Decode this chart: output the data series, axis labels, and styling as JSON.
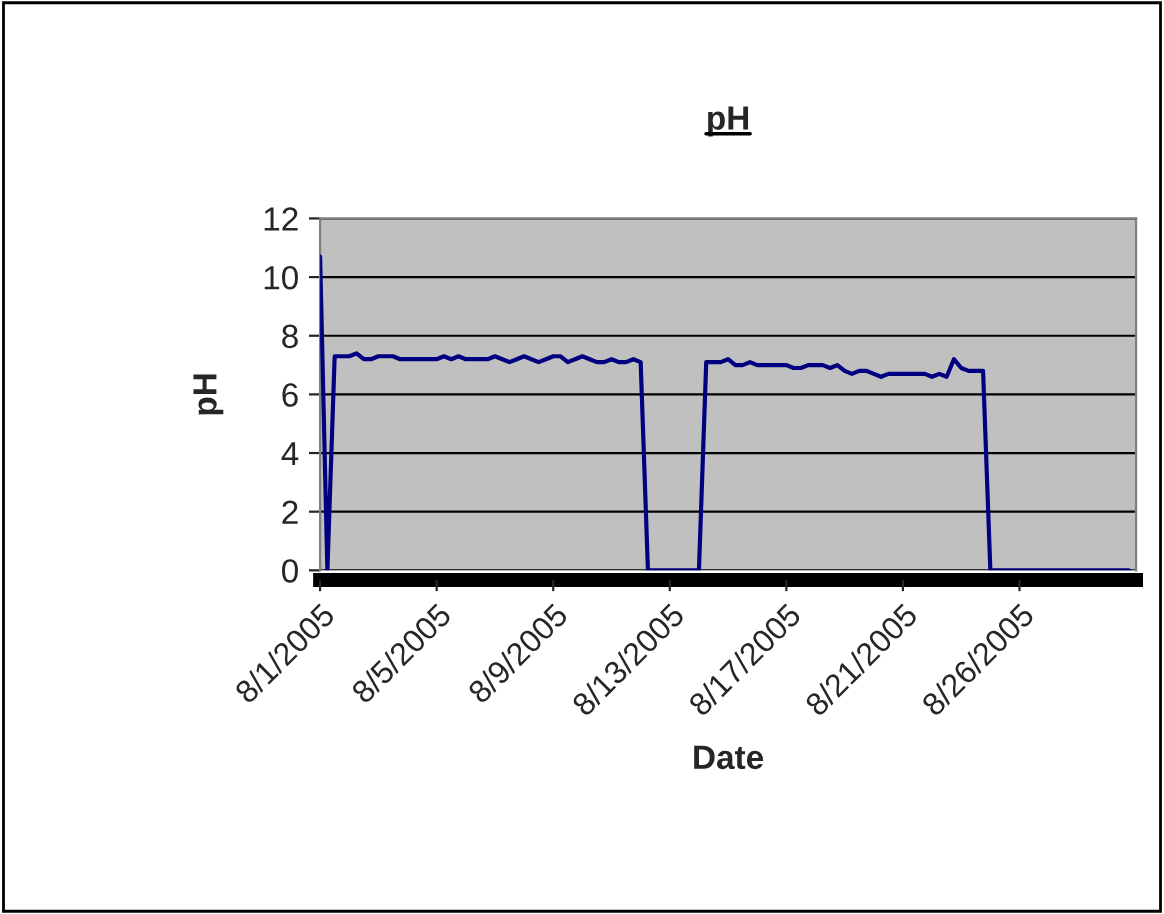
{
  "chart_data": {
    "type": "line",
    "title": "pH",
    "xlabel": "Date",
    "ylabel": "pH",
    "categories": [
      "8/1/2005",
      null,
      null,
      null,
      null,
      null,
      null,
      null,
      null,
      null,
      null,
      null,
      null,
      null,
      null,
      null,
      "8/5/2005",
      null,
      null,
      null,
      null,
      null,
      null,
      null,
      null,
      null,
      null,
      null,
      null,
      null,
      null,
      null,
      "8/9/2005",
      null,
      null,
      null,
      null,
      null,
      null,
      null,
      null,
      null,
      null,
      null,
      null,
      null,
      null,
      null,
      "8/13/2005",
      null,
      null,
      null,
      null,
      null,
      null,
      null,
      null,
      null,
      null,
      null,
      null,
      null,
      null,
      null,
      "8/17/2005",
      null,
      null,
      null,
      null,
      null,
      null,
      null,
      null,
      null,
      null,
      null,
      null,
      null,
      null,
      null,
      "8/21/2005",
      null,
      null,
      null,
      null,
      null,
      null,
      null,
      null,
      null,
      null,
      null,
      null,
      null,
      null,
      null,
      "8/26/2005",
      null,
      null,
      null,
      null,
      null,
      null,
      null,
      null,
      null,
      null,
      null,
      null,
      null,
      null,
      null
    ],
    "series": [
      {
        "color": "#000080",
        "values": [
          10.7,
          0,
          7.3,
          7.3,
          7.3,
          7.4,
          7.2,
          7.2,
          7.3,
          7.3,
          7.3,
          7.2,
          7.2,
          7.2,
          7.2,
          7.2,
          7.2,
          7.3,
          7.2,
          7.3,
          7.2,
          7.2,
          7.2,
          7.2,
          7.3,
          7.2,
          7.1,
          7.2,
          7.3,
          7.2,
          7.1,
          7.2,
          7.3,
          7.3,
          7.1,
          7.2,
          7.3,
          7.2,
          7.1,
          7.1,
          7.2,
          7.1,
          7.1,
          7.2,
          7.1,
          0,
          0,
          0,
          0,
          0,
          0,
          0,
          0,
          7.1,
          7.1,
          7.1,
          7.2,
          7.0,
          7.0,
          7.1,
          7.0,
          7.0,
          7.0,
          7.0,
          7.0,
          6.9,
          6.9,
          7.0,
          7.0,
          7.0,
          6.9,
          7.0,
          6.8,
          6.7,
          6.8,
          6.8,
          6.7,
          6.6,
          6.7,
          6.7,
          6.7,
          6.7,
          6.7,
          6.7,
          6.6,
          6.7,
          6.6,
          7.2,
          6.9,
          6.8,
          6.8,
          6.8,
          0,
          0,
          0,
          0,
          0,
          0,
          0,
          0,
          0,
          0,
          0,
          0,
          0,
          0,
          0,
          0,
          0,
          0,
          0,
          0
        ]
      }
    ],
    "ylim": [
      0,
      12
    ],
    "yticks": [
      0,
      2,
      4,
      6,
      8,
      10,
      12
    ],
    "grid": "y",
    "legend": false
  }
}
